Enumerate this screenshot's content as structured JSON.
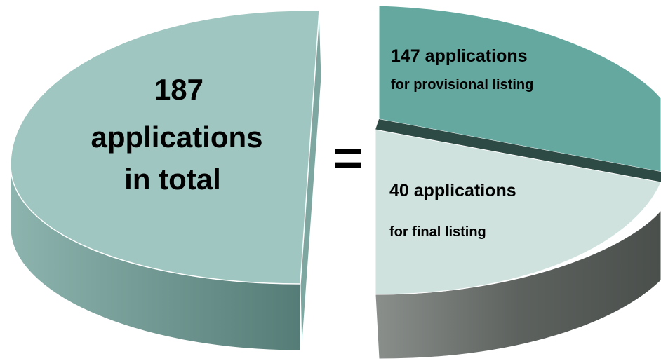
{
  "left": {
    "number": "187",
    "line2": "applications",
    "line3": "in total"
  },
  "equals": "=",
  "provisional": {
    "title": "147 applications",
    "subtitle": "for provisional listing"
  },
  "final": {
    "title": "40 applications",
    "subtitle": "for final listing"
  }
}
